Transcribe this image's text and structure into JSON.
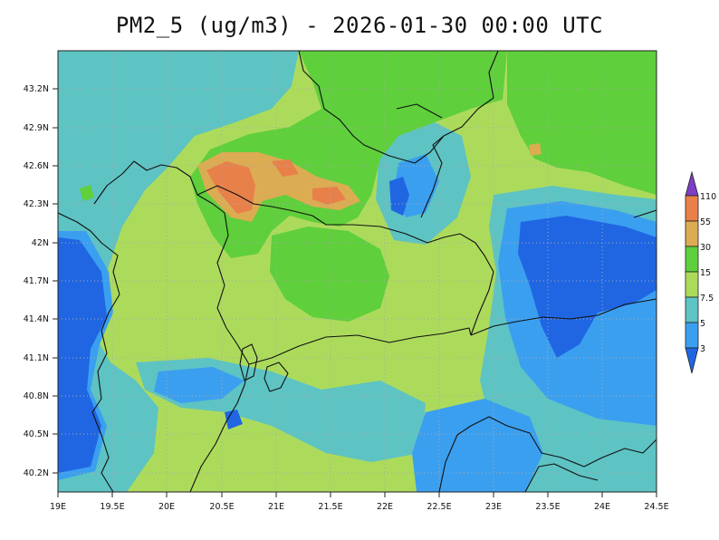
{
  "map": {
    "title": "PM2_5 (ug/m3) - 2026-01-30 00:00 UTC",
    "variable": "PM2_5",
    "units": "ug/m3",
    "valid_time": "2026-01-30 00:00 UTC"
  },
  "axes": {
    "lon_ticks": [
      "19E",
      "19.5E",
      "20E",
      "20.5E",
      "21E",
      "21.5E",
      "22E",
      "22.5E",
      "23E",
      "23.5E",
      "24E",
      "24.5E"
    ],
    "lat_ticks": [
      "43.2N",
      "42.9N",
      "42.6N",
      "42.3N",
      "42N",
      "41.7N",
      "41.4N",
      "41.1N",
      "40.8N",
      "40.5N",
      "40.2N"
    ]
  },
  "legend": {
    "levels": [
      "110",
      "55",
      "30",
      "15",
      "7.5",
      "5",
      "3"
    ],
    "colors": {
      "above_110": "#7d3fc4",
      "55_110": "#e8804a",
      "30_55": "#dcac52",
      "15_30": "#5fcf3c",
      "7.5_15": "#acdb5c",
      "5_7.5": "#5ec3c3",
      "3_5": "#3b9ff0",
      "below_3": "#2066e3"
    }
  }
}
